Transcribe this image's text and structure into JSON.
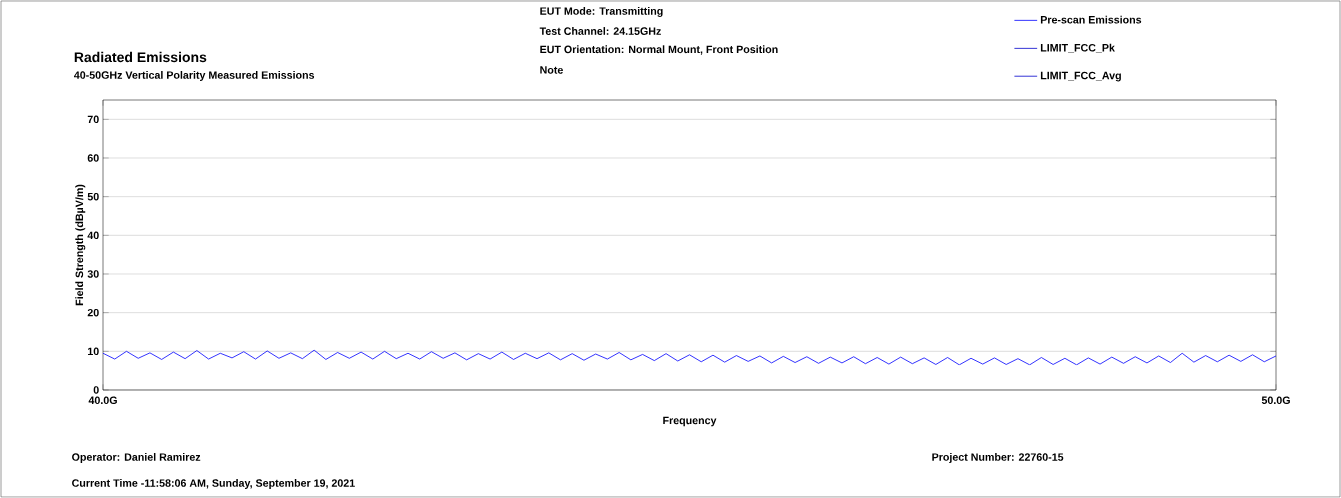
{
  "chart_data": {
    "type": "line",
    "title": "Radiated Emissions",
    "subtitle": "40-50GHz Vertical Polarity Measured Emissions",
    "xlabel": "Frequency",
    "ylabel": "Field Strength (dBµV/m)",
    "annotations": [
      "EUT Mode: Transmitting",
      "Test Channel: 24.15GHz",
      "EUT Orientation: Normal Mount, Front Position",
      "Note",
      "Operator: Daniel Ramirez",
      "Current Time -11:58:06 AM, Sunday, September 19, 2021",
      "Project Number: 22760-15"
    ],
    "xlim": [
      40,
      50
    ],
    "ylim": [
      0,
      75
    ],
    "xticks": [
      {
        "value": 40,
        "label": "40.0G"
      },
      {
        "value": 50,
        "label": "50.0G"
      }
    ],
    "yticks": [
      0,
      10,
      20,
      30,
      40,
      50,
      60,
      70
    ],
    "grid": "y",
    "legend": "top right",
    "marker": "none",
    "line_style": "solid",
    "series": [
      {
        "name": "Pre-scan Emissions",
        "color": "#0000ff",
        "x": [
          40.0,
          40.1,
          40.2,
          40.3,
          40.4,
          40.5,
          40.6,
          40.7,
          40.8,
          40.9,
          41.0,
          41.1,
          41.2,
          41.3,
          41.4,
          41.5,
          41.6,
          41.7,
          41.8,
          41.9,
          42.0,
          42.1,
          42.2,
          42.3,
          42.4,
          42.5,
          42.6,
          42.7,
          42.8,
          42.9,
          43.0,
          43.1,
          43.2,
          43.3,
          43.4,
          43.5,
          43.6,
          43.7,
          43.8,
          43.9,
          44.0,
          44.1,
          44.2,
          44.3,
          44.4,
          44.5,
          44.6,
          44.7,
          44.8,
          44.9,
          45.0,
          45.1,
          45.2,
          45.3,
          45.4,
          45.5,
          45.6,
          45.7,
          45.8,
          45.9,
          46.0,
          46.1,
          46.2,
          46.3,
          46.4,
          46.5,
          46.6,
          46.7,
          46.8,
          46.9,
          47.0,
          47.1,
          47.2,
          47.3,
          47.4,
          47.5,
          47.6,
          47.7,
          47.8,
          47.9,
          48.0,
          48.1,
          48.2,
          48.3,
          48.4,
          48.5,
          48.6,
          48.7,
          48.8,
          48.9,
          49.0,
          49.1,
          49.2,
          49.3,
          49.4,
          49.5,
          49.6,
          49.7,
          49.8,
          49.9,
          50.0
        ],
        "values": [
          9.5,
          8.0,
          10.0,
          8.2,
          9.6,
          7.9,
          9.8,
          8.1,
          10.2,
          8.0,
          9.5,
          8.3,
          9.9,
          8.0,
          10.1,
          8.2,
          9.6,
          8.1,
          10.3,
          7.9,
          9.7,
          8.2,
          9.8,
          8.0,
          10.0,
          8.1,
          9.5,
          8.0,
          9.9,
          8.2,
          9.6,
          7.8,
          9.4,
          8.0,
          9.8,
          7.9,
          9.5,
          8.1,
          9.6,
          7.8,
          9.4,
          7.7,
          9.3,
          8.0,
          9.7,
          7.8,
          9.2,
          7.6,
          9.4,
          7.5,
          9.1,
          7.3,
          9.0,
          7.2,
          8.9,
          7.4,
          8.8,
          7.0,
          8.7,
          7.1,
          8.6,
          6.9,
          8.5,
          7.0,
          8.6,
          6.8,
          8.4,
          6.7,
          8.5,
          6.8,
          8.3,
          6.6,
          8.4,
          6.5,
          8.2,
          6.7,
          8.3,
          6.6,
          8.1,
          6.5,
          8.4,
          6.6,
          8.2,
          6.5,
          8.3,
          6.7,
          8.5,
          6.9,
          8.6,
          7.0,
          8.8,
          7.1,
          9.5,
          7.2,
          8.9,
          7.3,
          9.0,
          7.4,
          9.1,
          7.3,
          8.8
        ]
      },
      {
        "name": "LIMIT_FCC_Pk",
        "color": "#0000cc"
      },
      {
        "name": "LIMIT_FCC_Avg",
        "color": "#0000cc"
      }
    ]
  }
}
